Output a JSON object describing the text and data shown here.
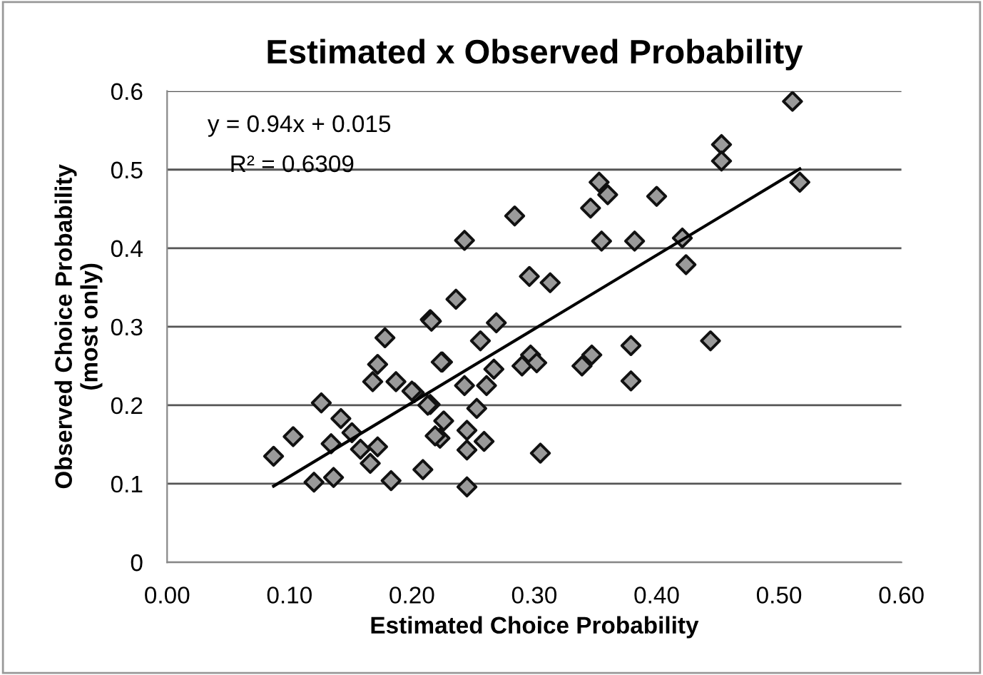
{
  "chart_data": {
    "type": "scatter",
    "title": "Estimated x Observed Probability",
    "xlabel": "Estimated Choice Probability",
    "ylabel": "Observed Choice Probability\n(most only)",
    "annotations": [
      "y = 0.94x + 0.015",
      "R² = 0.6309"
    ],
    "xlim": [
      0,
      0.6
    ],
    "xticks": [
      {
        "value": 0,
        "label": "0.00"
      },
      {
        "value": 0.1,
        "label": "0.10"
      },
      {
        "value": 0.2,
        "label": "0.20"
      },
      {
        "value": 0.3,
        "label": "0.30"
      },
      {
        "value": 0.4,
        "label": "0.40"
      },
      {
        "value": 0.5,
        "label": "0.50"
      },
      {
        "value": 0.6,
        "label": "0.60"
      }
    ],
    "ylim": [
      0,
      0.6
    ],
    "yticks": [
      0,
      0.1,
      0.2,
      0.3,
      0.4,
      0.5,
      0.6
    ],
    "grid": "y",
    "legend": false,
    "series": [
      {
        "color": "#9a9a9a",
        "marker": "diamond",
        "x": [
          0.087,
          0.103,
          0.126,
          0.12,
          0.136,
          0.142,
          0.134,
          0.151,
          0.158,
          0.166,
          0.172,
          0.168,
          0.172,
          0.178,
          0.187,
          0.183,
          0.202,
          0.215,
          0.215,
          0.225,
          0.226,
          0.223,
          0.236,
          0.243,
          0.511,
          0.453,
          0.453,
          0.517,
          0.353,
          0.36,
          0.346,
          0.4,
          0.284,
          0.355,
          0.382,
          0.421,
          0.424,
          0.296,
          0.313,
          0.216,
          0.269,
          0.256,
          0.224,
          0.297,
          0.29,
          0.302,
          0.339,
          0.347,
          0.379,
          0.379,
          0.444,
          0.305,
          0.209,
          0.245,
          0.243,
          0.253,
          0.261,
          0.267,
          0.245,
          0.259,
          0.245,
          0.219,
          0.213,
          0.2
        ],
        "values": [
          0.135,
          0.16,
          0.203,
          0.102,
          0.108,
          0.183,
          0.151,
          0.165,
          0.144,
          0.126,
          0.147,
          0.23,
          0.252,
          0.286,
          0.23,
          0.104,
          0.216,
          0.201,
          0.309,
          0.255,
          0.18,
          0.158,
          0.335,
          0.41,
          0.587,
          0.532,
          0.511,
          0.484,
          0.484,
          0.468,
          0.451,
          0.466,
          0.441,
          0.409,
          0.409,
          0.413,
          0.379,
          0.364,
          0.356,
          0.307,
          0.305,
          0.282,
          0.255,
          0.264,
          0.25,
          0.254,
          0.25,
          0.264,
          0.276,
          0.231,
          0.282,
          0.139,
          0.118,
          0.096,
          0.225,
          0.196,
          0.225,
          0.246,
          0.168,
          0.154,
          0.143,
          0.161,
          0.2,
          0.218
        ]
      },
      {
        "type": "line",
        "color": "#000000",
        "marker": "none",
        "line_style": "solid",
        "x": [
          0.087,
          0.517
        ],
        "values": [
          0.097,
          0.501
        ]
      }
    ]
  }
}
